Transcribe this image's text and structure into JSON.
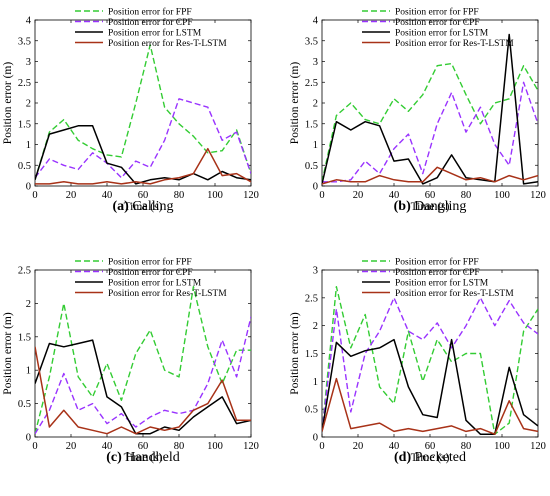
{
  "chart_data": [
    {
      "type": "line",
      "caption_letter": "(a)",
      "caption_text": " Calling",
      "xlabel": "Time (s)",
      "ylabel": "Position error (m)",
      "xlim": [
        0,
        120
      ],
      "ylim": [
        0,
        4
      ],
      "xticks": [
        0,
        20,
        40,
        60,
        80,
        100,
        120
      ],
      "yticks": [
        0,
        0.5,
        1,
        1.5,
        2,
        2.5,
        3,
        3.5,
        4
      ],
      "ytick_labels": [
        "0",
        "0.5",
        "1",
        "1.5",
        "2",
        "2.5",
        "3",
        "3.5",
        "4"
      ],
      "x": [
        0,
        8,
        16,
        24,
        32,
        40,
        48,
        56,
        64,
        72,
        80,
        88,
        96,
        104,
        112,
        120
      ],
      "series": [
        {
          "name": "Position error for FPF",
          "color": "#33cc33",
          "dash": "6,3",
          "values": [
            0.15,
            1.3,
            1.6,
            1.1,
            0.9,
            0.75,
            0.7,
            2.0,
            3.4,
            1.9,
            1.5,
            1.2,
            0.8,
            0.85,
            1.35,
            0.3
          ]
        },
        {
          "name": "Position error for CPF",
          "color": "#9933ff",
          "dash": "6,3",
          "values": [
            0.2,
            0.65,
            0.5,
            0.4,
            0.8,
            0.55,
            0.2,
            0.6,
            0.45,
            1.1,
            2.1,
            2.0,
            1.9,
            1.1,
            1.3,
            0.3
          ]
        },
        {
          "name": "Position error for  LSTM",
          "color": "#000000",
          "dash": "",
          "values": [
            0.15,
            1.25,
            1.35,
            1.45,
            1.45,
            0.55,
            0.45,
            0.05,
            0.15,
            0.2,
            0.15,
            0.3,
            0.15,
            0.35,
            0.2,
            0.15
          ]
        },
        {
          "name": "Position error for  Res-T-LSTM",
          "color": "#a83218",
          "dash": "",
          "values": [
            0.05,
            0.05,
            0.1,
            0.05,
            0.05,
            0.1,
            0.05,
            0.1,
            0.05,
            0.15,
            0.2,
            0.3,
            0.9,
            0.25,
            0.3,
            0.1
          ]
        }
      ]
    },
    {
      "type": "line",
      "caption_letter": "(b)",
      "caption_text": " Dangling",
      "xlabel": "Time (s)",
      "ylabel": "Position error (m)",
      "xlim": [
        0,
        120
      ],
      "ylim": [
        0,
        4
      ],
      "xticks": [
        0,
        20,
        40,
        60,
        80,
        100,
        120
      ],
      "yticks": [
        0,
        0.5,
        1,
        1.5,
        2,
        2.5,
        3,
        3.5,
        4
      ],
      "ytick_labels": [
        "0",
        "0.5",
        "1",
        "1.5",
        "2",
        "2.5",
        "3",
        "3.5",
        "4"
      ],
      "x": [
        0,
        8,
        16,
        24,
        32,
        40,
        48,
        56,
        64,
        72,
        80,
        88,
        96,
        104,
        112,
        120
      ],
      "series": [
        {
          "name": "Position error for FPF",
          "color": "#33cc33",
          "dash": "6,3",
          "values": [
            0.1,
            1.7,
            2.0,
            1.6,
            1.5,
            2.1,
            1.8,
            2.2,
            2.9,
            2.95,
            2.2,
            1.5,
            2.0,
            2.1,
            2.9,
            2.3
          ]
        },
        {
          "name": "Position error for CPF",
          "color": "#9933ff",
          "dash": "6,3",
          "values": [
            0.1,
            0.1,
            0.15,
            0.6,
            0.3,
            0.9,
            1.25,
            0.3,
            1.5,
            2.25,
            1.3,
            1.9,
            1.0,
            0.5,
            2.5,
            1.5
          ]
        },
        {
          "name": "Position error for  LSTM",
          "color": "#000000",
          "dash": "",
          "values": [
            0.05,
            1.55,
            1.35,
            1.55,
            1.45,
            0.6,
            0.65,
            0.05,
            0.2,
            0.75,
            0.2,
            0.15,
            0.1,
            3.65,
            0.05,
            0.1
          ]
        },
        {
          "name": "Position error for  Res-T-LSTM",
          "color": "#a83218",
          "dash": "",
          "values": [
            0.05,
            0.15,
            0.1,
            0.1,
            0.25,
            0.15,
            0.1,
            0.1,
            0.45,
            0.3,
            0.15,
            0.2,
            0.1,
            0.25,
            0.15,
            0.25
          ]
        }
      ]
    },
    {
      "type": "line",
      "caption_letter": "(c)",
      "caption_text": " Handheld",
      "xlabel": "Time (s)",
      "ylabel": "Position error (m)",
      "xlim": [
        0,
        120
      ],
      "ylim": [
        0,
        2.5
      ],
      "xticks": [
        0,
        20,
        40,
        60,
        80,
        100,
        120
      ],
      "yticks": [
        0,
        0.5,
        1,
        1.5,
        2,
        2.5
      ],
      "ytick_labels": [
        "0",
        "0.5",
        "1",
        "1.5",
        "2",
        "2.5"
      ],
      "x": [
        0,
        8,
        16,
        24,
        32,
        40,
        48,
        56,
        64,
        72,
        80,
        88,
        96,
        104,
        112,
        120
      ],
      "series": [
        {
          "name": "Position error for FPF",
          "color": "#33cc33",
          "dash": "6,3",
          "values": [
            0.05,
            0.9,
            2.0,
            0.9,
            0.6,
            1.1,
            0.55,
            1.25,
            1.6,
            1.0,
            0.9,
            2.25,
            1.35,
            0.8,
            1.3,
            1.3
          ]
        },
        {
          "name": "Position error for CPF",
          "color": "#9933ff",
          "dash": "6,3",
          "values": [
            0.05,
            0.4,
            0.95,
            0.4,
            0.5,
            0.2,
            0.35,
            0.15,
            0.3,
            0.4,
            0.35,
            0.4,
            0.8,
            1.45,
            0.9,
            1.8
          ]
        },
        {
          "name": "Position error for  LSTM",
          "color": "#000000",
          "dash": "",
          "values": [
            0.8,
            1.4,
            1.35,
            1.4,
            1.45,
            0.6,
            0.45,
            0.05,
            0.05,
            0.15,
            0.1,
            0.3,
            0.45,
            0.6,
            0.2,
            0.25
          ]
        },
        {
          "name": "Position error for  Res-T-LSTM",
          "color": "#a83218",
          "dash": "",
          "values": [
            1.35,
            0.15,
            0.4,
            0.15,
            0.1,
            0.05,
            0.15,
            0.05,
            0.15,
            0.1,
            0.15,
            0.4,
            0.5,
            0.85,
            0.25,
            0.25
          ]
        }
      ]
    },
    {
      "type": "line",
      "caption_letter": "(d)",
      "caption_text": " Pocketed",
      "xlabel": "Time (s)",
      "ylabel": "Position error (m)",
      "xlim": [
        0,
        120
      ],
      "ylim": [
        0,
        3
      ],
      "xticks": [
        0,
        20,
        40,
        60,
        80,
        100,
        120
      ],
      "yticks": [
        0,
        0.5,
        1,
        1.5,
        2,
        2.5,
        3
      ],
      "ytick_labels": [
        "0",
        "0.5",
        "1",
        "1.5",
        "2",
        "2.5",
        "3"
      ],
      "x": [
        0,
        8,
        16,
        24,
        32,
        40,
        48,
        56,
        64,
        72,
        80,
        88,
        96,
        104,
        112,
        120
      ],
      "series": [
        {
          "name": "Position error for FPF",
          "color": "#33cc33",
          "dash": "6,3",
          "values": [
            0.1,
            2.7,
            1.6,
            2.2,
            0.9,
            0.6,
            1.9,
            1.0,
            1.75,
            1.35,
            1.5,
            1.5,
            0.05,
            0.25,
            1.9,
            2.3
          ]
        },
        {
          "name": "Position error for CPF",
          "color": "#9933ff",
          "dash": "6,3",
          "values": [
            0.1,
            2.3,
            0.45,
            1.5,
            1.9,
            2.5,
            1.9,
            1.75,
            2.05,
            1.6,
            2.0,
            2.5,
            2.0,
            2.45,
            2.05,
            1.85
          ]
        },
        {
          "name": "Position error for  LSTM",
          "color": "#000000",
          "dash": "",
          "values": [
            0.1,
            1.7,
            1.45,
            1.55,
            1.6,
            1.75,
            0.9,
            0.4,
            0.35,
            1.75,
            0.3,
            0.05,
            0.05,
            1.25,
            0.4,
            0.2
          ]
        },
        {
          "name": "Position error for  Res-T-LSTM",
          "color": "#a83218",
          "dash": "",
          "values": [
            0.1,
            1.05,
            0.15,
            0.2,
            0.25,
            0.1,
            0.15,
            0.1,
            0.15,
            0.2,
            0.1,
            0.15,
            0.05,
            0.65,
            0.15,
            0.1
          ]
        }
      ]
    }
  ]
}
